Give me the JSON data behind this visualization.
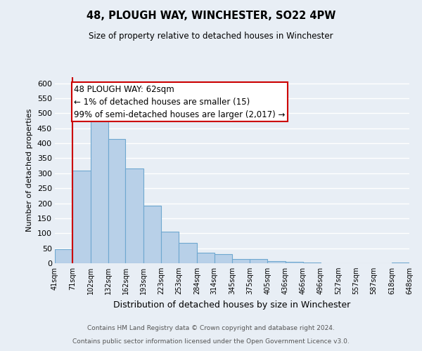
{
  "title": "48, PLOUGH WAY, WINCHESTER, SO22 4PW",
  "subtitle": "Size of property relative to detached houses in Winchester",
  "xlabel": "Distribution of detached houses by size in Winchester",
  "ylabel": "Number of detached properties",
  "bin_labels": [
    "41sqm",
    "71sqm",
    "102sqm",
    "132sqm",
    "162sqm",
    "193sqm",
    "223sqm",
    "253sqm",
    "284sqm",
    "314sqm",
    "345sqm",
    "375sqm",
    "405sqm",
    "436sqm",
    "466sqm",
    "496sqm",
    "527sqm",
    "557sqm",
    "587sqm",
    "618sqm",
    "648sqm"
  ],
  "bar_values": [
    47,
    310,
    480,
    415,
    315,
    193,
    105,
    69,
    35,
    30,
    14,
    15,
    8,
    5,
    2,
    1,
    0,
    0,
    0,
    2
  ],
  "bar_color": "#b8d0e8",
  "bar_edge_color": "#6fa8d0",
  "marker_line_color": "#cc0000",
  "ylim": [
    0,
    620
  ],
  "yticks": [
    0,
    50,
    100,
    150,
    200,
    250,
    300,
    350,
    400,
    450,
    500,
    550,
    600
  ],
  "annotation_title": "48 PLOUGH WAY: 62sqm",
  "annotation_line1": "← 1% of detached houses are smaller (15)",
  "annotation_line2": "99% of semi-detached houses are larger (2,017) →",
  "annotation_box_color": "#ffffff",
  "annotation_box_edge": "#cc0000",
  "footer_line1": "Contains HM Land Registry data © Crown copyright and database right 2024.",
  "footer_line2": "Contains public sector information licensed under the Open Government Licence v3.0.",
  "background_color": "#e8eef5",
  "grid_color": "#ffffff"
}
